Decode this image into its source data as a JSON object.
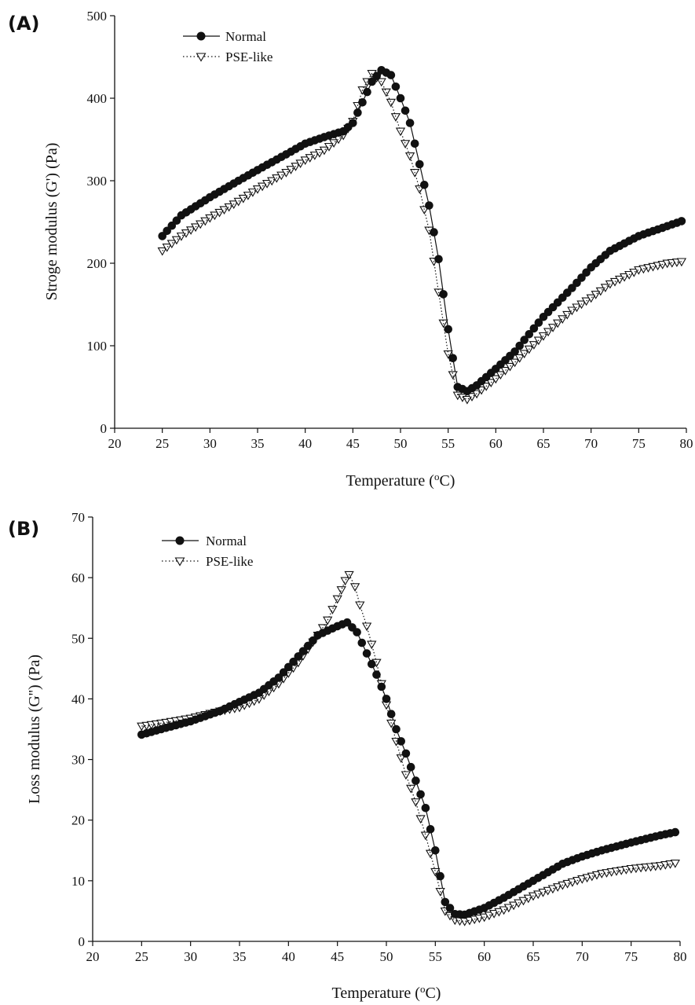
{
  "chart_data": [
    {
      "panel_label": "(A)",
      "type": "line",
      "xlabel": "Temperature (°C)",
      "xlabel_main": "Temperature (",
      "xlabel_sup": "o",
      "xlabel_end": "C)",
      "ylabel": "Stroge modulus (G') (Pa)",
      "xlim": [
        20,
        80
      ],
      "ylim": [
        0,
        500
      ],
      "x_ticks": [
        20,
        25,
        30,
        35,
        40,
        45,
        50,
        55,
        60,
        65,
        70,
        75,
        80
      ],
      "y_ticks": [
        0,
        100,
        200,
        300,
        400,
        500
      ],
      "grid": false,
      "legend_position": "top-left",
      "series": [
        {
          "name": "Normal",
          "marker": "filled-circle",
          "line": "solid",
          "points": [
            [
              25,
              233
            ],
            [
              27,
              258
            ],
            [
              30,
              280
            ],
            [
              33,
              300
            ],
            [
              35,
              313
            ],
            [
              38,
              332
            ],
            [
              40,
              345
            ],
            [
              42,
              353
            ],
            [
              44,
              360
            ],
            [
              45,
              370
            ],
            [
              46,
              395
            ],
            [
              47,
              420
            ],
            [
              48,
              434
            ],
            [
              49,
              428
            ],
            [
              50,
              400
            ],
            [
              51,
              370
            ],
            [
              52,
              320
            ],
            [
              53,
              270
            ],
            [
              54,
              205
            ],
            [
              55,
              120
            ],
            [
              56,
              50
            ],
            [
              57,
              45
            ],
            [
              58,
              52
            ],
            [
              60,
              72
            ],
            [
              62,
              93
            ],
            [
              65,
              135
            ],
            [
              68,
              170
            ],
            [
              70,
              195
            ],
            [
              72,
              215
            ],
            [
              75,
              233
            ],
            [
              78,
              245
            ],
            [
              79.5,
              251
            ]
          ]
        },
        {
          "name": "PSE-like",
          "marker": "open-triangle-down",
          "line": "dotted",
          "points": [
            [
              25,
              215
            ],
            [
              27,
              233
            ],
            [
              30,
              255
            ],
            [
              33,
              275
            ],
            [
              35,
              290
            ],
            [
              38,
              310
            ],
            [
              40,
              325
            ],
            [
              42,
              337
            ],
            [
              44,
              355
            ],
            [
              45,
              372
            ],
            [
              46,
              410
            ],
            [
              47,
              430
            ],
            [
              48,
              420
            ],
            [
              49,
              395
            ],
            [
              50,
              360
            ],
            [
              51,
              330
            ],
            [
              52,
              290
            ],
            [
              53,
              240
            ],
            [
              54,
              165
            ],
            [
              55,
              90
            ],
            [
              56,
              40
            ],
            [
              57,
              35
            ],
            [
              58,
              42
            ],
            [
              60,
              60
            ],
            [
              62,
              80
            ],
            [
              65,
              112
            ],
            [
              68,
              143
            ],
            [
              70,
              158
            ],
            [
              72,
              175
            ],
            [
              75,
              192
            ],
            [
              78,
              200
            ],
            [
              79.5,
              202
            ]
          ]
        }
      ]
    },
    {
      "panel_label": "(B)",
      "type": "line",
      "xlabel": "Temperature (°C)",
      "xlabel_main": "Temperature (",
      "xlabel_sup": "o",
      "xlabel_end": "C)",
      "ylabel": "Loss modulus (G'') (Pa)",
      "xlim": [
        20,
        80
      ],
      "ylim": [
        0,
        70
      ],
      "x_ticks": [
        20,
        25,
        30,
        35,
        40,
        45,
        50,
        55,
        60,
        65,
        70,
        75,
        80
      ],
      "y_ticks": [
        0,
        10,
        20,
        30,
        40,
        50,
        60,
        70
      ],
      "grid": false,
      "legend_position": "top-left",
      "series": [
        {
          "name": "Normal",
          "marker": "filled-circle",
          "line": "solid",
          "points": [
            [
              25,
              34.1
            ],
            [
              27,
              35
            ],
            [
              30,
              36.3
            ],
            [
              33,
              38
            ],
            [
              35,
              39.5
            ],
            [
              37,
              41
            ],
            [
              39,
              43.5
            ],
            [
              41,
              47
            ],
            [
              43,
              50.5
            ],
            [
              45,
              52
            ],
            [
              46,
              52.6
            ],
            [
              47,
              51
            ],
            [
              48,
              47.5
            ],
            [
              49,
              44
            ],
            [
              50,
              40
            ],
            [
              51,
              35
            ],
            [
              52,
              31
            ],
            [
              53,
              26.5
            ],
            [
              54,
              22
            ],
            [
              55,
              15
            ],
            [
              56,
              6.5
            ],
            [
              57,
              4.5
            ],
            [
              58,
              4.4
            ],
            [
              60,
              5.5
            ],
            [
              62,
              7.2
            ],
            [
              65,
              10
            ],
            [
              68,
              12.8
            ],
            [
              70,
              14
            ],
            [
              72,
              15
            ],
            [
              75,
              16.3
            ],
            [
              78,
              17.5
            ],
            [
              79.5,
              18
            ]
          ]
        },
        {
          "name": "PSE-like",
          "marker": "open-triangle-down",
          "line": "dotted",
          "points": [
            [
              25,
              35.5
            ],
            [
              27,
              36
            ],
            [
              30,
              36.8
            ],
            [
              33,
              38
            ],
            [
              35,
              38.6
            ],
            [
              37,
              40
            ],
            [
              39,
              42.5
            ],
            [
              41,
              46
            ],
            [
              43,
              50.5
            ],
            [
              44,
              53
            ],
            [
              45,
              56.5
            ],
            [
              45.8,
              59.5
            ],
            [
              46.2,
              60.5
            ],
            [
              46.8,
              58.5
            ],
            [
              47.3,
              55.5
            ],
            [
              48,
              52
            ],
            [
              49,
              46
            ],
            [
              50,
              39
            ],
            [
              51,
              33
            ],
            [
              52,
              27.5
            ],
            [
              53,
              23
            ],
            [
              54,
              17.5
            ],
            [
              55,
              11.5
            ],
            [
              56,
              5
            ],
            [
              57,
              3.5
            ],
            [
              58,
              3.3
            ],
            [
              60,
              4
            ],
            [
              62,
              5.2
            ],
            [
              65,
              7.5
            ],
            [
              68,
              9.3
            ],
            [
              70,
              10.3
            ],
            [
              72,
              11.2
            ],
            [
              75,
              12
            ],
            [
              78,
              12.5
            ],
            [
              79.5,
              12.9
            ]
          ]
        }
      ]
    }
  ]
}
